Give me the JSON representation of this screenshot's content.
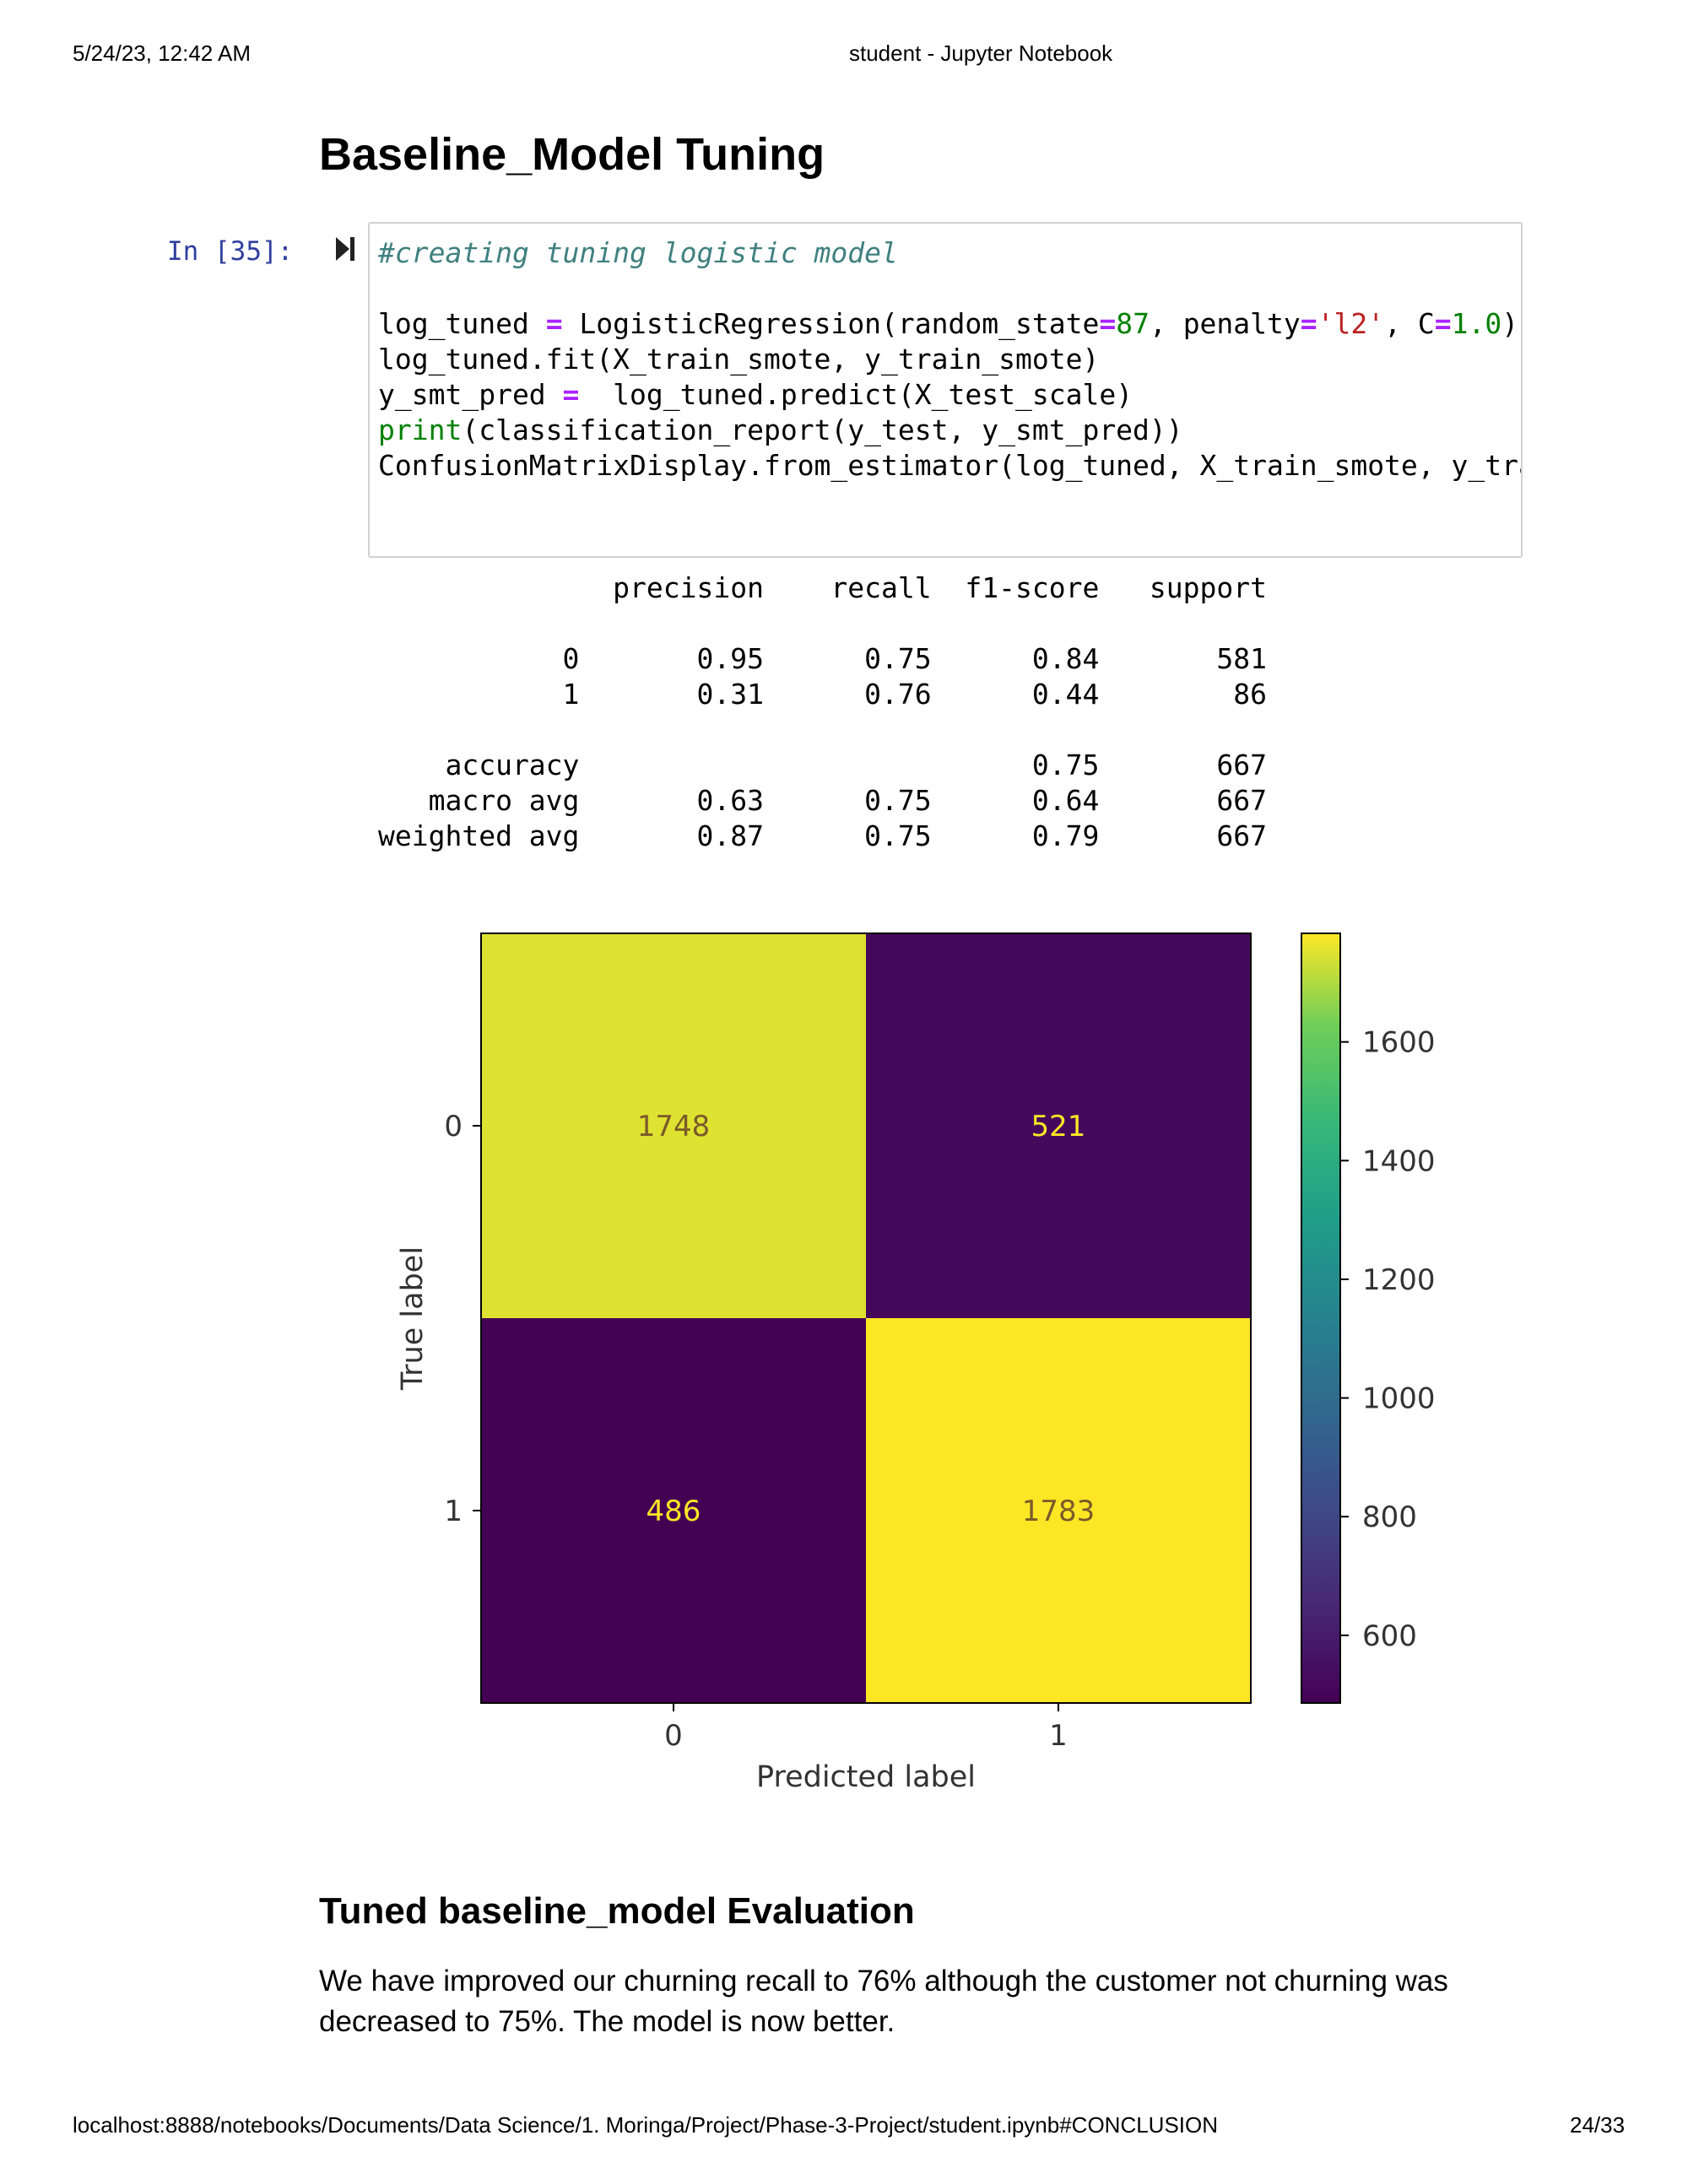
{
  "header": {
    "datetime": "5/24/23, 12:42 AM",
    "title": "student - Jupyter Notebook"
  },
  "section1": {
    "heading": "Baseline_Model Tuning"
  },
  "cell": {
    "prompt": "In [35]:",
    "run_icon": "run-cell-icon"
  },
  "report": {
    "header_line": "              precision    recall  f1-score   support",
    "rows": [
      "           0       0.95      0.75      0.84       581",
      "           1       0.31      0.76      0.44        86",
      "    accuracy                           0.75       667",
      "   macro avg       0.63      0.75      0.64       667",
      "weighted avg       0.87      0.75      0.79       667"
    ]
  },
  "chart_data": {
    "type": "heatmap",
    "x_categories": [
      "0",
      "1"
    ],
    "y_categories": [
      "0",
      "1"
    ],
    "values": [
      [
        1748,
        521
      ],
      [
        486,
        1783
      ]
    ],
    "xlabel": "Predicted label",
    "ylabel": "True label",
    "colorbar": {
      "range": [
        486,
        1783
      ],
      "ticks": [
        600,
        800,
        1000,
        1200,
        1400,
        1600
      ]
    },
    "colors": {
      "low": "#440154",
      "high": "#fde725",
      "low_text": "#fde725",
      "high_text": "#440154"
    }
  },
  "section2": {
    "heading": "Tuned baseline_model Evaluation",
    "paragraph_line1": "We have improved our churning recall to 76% although the customer not churning was",
    "paragraph_line2": "decreased to 75%. The model is now better."
  },
  "footer": {
    "url": "localhost:8888/notebooks/Documents/Data Science/1. Moringa/Project/Phase-3-Project/student.ipynb#CONCLUSION",
    "page": "24/33"
  }
}
